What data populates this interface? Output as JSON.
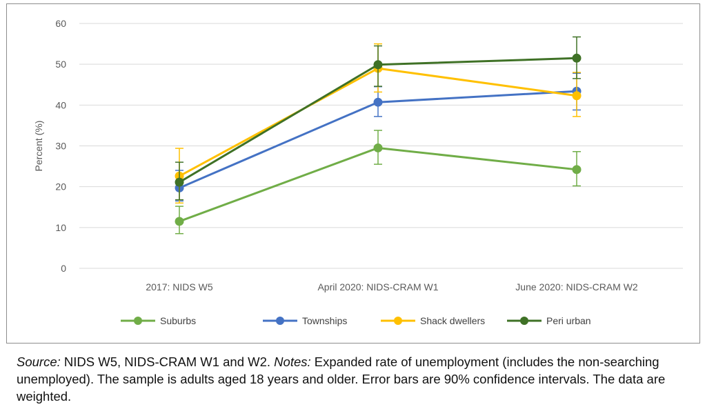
{
  "chart_data": {
    "type": "line",
    "ylabel": "Percent (%)",
    "ylim": [
      0,
      60
    ],
    "yticks": [
      0,
      10,
      20,
      30,
      40,
      50,
      60
    ],
    "grid": "horizontal",
    "legend_position": "bottom",
    "categories": [
      "2017: NIDS W5",
      "April 2020: NIDS-CRAM W1",
      "June 2020: NIDS-CRAM W2"
    ],
    "series": [
      {
        "name": "Suburbs",
        "color": "#70ad47",
        "values": [
          11.5,
          29.5,
          24.2
        ],
        "err_low": [
          8.5,
          25.5,
          20.2
        ],
        "err_high": [
          15.2,
          33.8,
          28.6
        ]
      },
      {
        "name": "Townships",
        "color": "#4472c4",
        "values": [
          19.7,
          40.7,
          43.4
        ],
        "err_low": [
          16.5,
          37.2,
          38.8
        ],
        "err_high": [
          24.0,
          44.5,
          47.8
        ]
      },
      {
        "name": "Shack dwellers",
        "color": "#ffc000",
        "values": [
          22.6,
          49.0,
          42.3
        ],
        "err_low": [
          16.0,
          43.2,
          37.2
        ],
        "err_high": [
          29.4,
          55.0,
          48.0
        ]
      },
      {
        "name": "Peri urban",
        "color": "#3f7126",
        "values": [
          21.1,
          49.9,
          51.5
        ],
        "err_low": [
          16.8,
          44.6,
          46.5
        ],
        "err_high": [
          26.0,
          54.5,
          56.7
        ]
      }
    ]
  },
  "caption": {
    "source_label": "Source:",
    "source_text": " NIDS W5, NIDS-CRAM W1 and W2.  ",
    "notes_label": "Notes:",
    "notes_text": " Expanded rate of unemployment (includes the non-searching unemployed). The sample is adults aged 18 years and older. Error bars are 90% confidence intervals. The data are weighted."
  }
}
